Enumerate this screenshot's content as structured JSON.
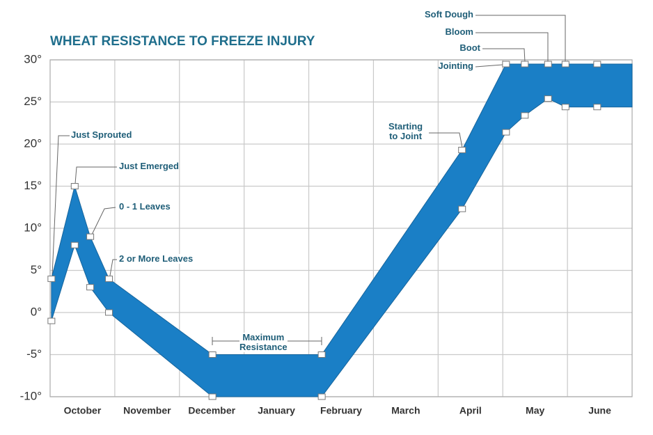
{
  "chart_data": {
    "type": "band",
    "title": "WHEAT RESISTANCE TO FREEZE INJURY",
    "x": [
      0.02,
      0.38,
      0.62,
      0.91,
      2.51,
      4.2,
      6.37,
      7.05,
      7.34,
      7.7,
      7.97,
      8.46,
      9
    ],
    "series": [
      {
        "color": "#1a7fc6",
        "values": [
          4,
          15,
          9,
          4,
          -5,
          -5,
          19.3,
          29.5,
          29.5,
          29.5,
          29.5,
          29.5,
          29.5
        ]
      },
      {
        "color": "#1a7fc6",
        "values": [
          -1,
          8,
          3,
          0,
          -10,
          -10,
          12.3,
          21.4,
          23.4,
          25.4,
          24.4,
          24.4,
          24.4
        ]
      }
    ],
    "xlim": [
      0,
      9
    ],
    "xticks": [
      {
        "value": 0.5,
        "label": "October"
      },
      {
        "value": 1.5,
        "label": "November"
      },
      {
        "value": 2.5,
        "label": "December"
      },
      {
        "value": 3.5,
        "label": "January"
      },
      {
        "value": 4.5,
        "label": "February"
      },
      {
        "value": 5.5,
        "label": "March"
      },
      {
        "value": 6.5,
        "label": "April"
      },
      {
        "value": 7.5,
        "label": "May"
      },
      {
        "value": 8.5,
        "label": "June"
      }
    ],
    "ylim": [
      -10,
      30
    ],
    "yticks": [
      {
        "value": 30,
        "label": "30°"
      },
      {
        "value": 25,
        "label": "25°"
      },
      {
        "value": 20,
        "label": "20°"
      },
      {
        "value": 15,
        "label": "15°"
      },
      {
        "value": 10,
        "label": "10°"
      },
      {
        "value": 5,
        "label": "5°"
      },
      {
        "value": 0,
        "label": "0°"
      },
      {
        "value": -5,
        "label": "-5°"
      },
      {
        "value": -10,
        "label": "-10°"
      }
    ],
    "grid": true,
    "annotations": [
      "Just Sprouted",
      "Just Emerged",
      "0 - 1 Leaves",
      "2 or More Leaves",
      "Maximum\nResistance",
      "Starting\nto Joint",
      "Jointing",
      "Boot",
      "Bloom",
      "Soft Dough"
    ]
  }
}
